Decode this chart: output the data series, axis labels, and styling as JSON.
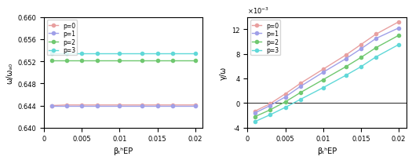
{
  "x": [
    0.001,
    0.003,
    0.005,
    0.007,
    0.01,
    0.013,
    0.015,
    0.017,
    0.02
  ],
  "left_ylim": [
    0.64,
    0.66
  ],
  "left_yticks": [
    0.64,
    0.644,
    0.648,
    0.652,
    0.656,
    0.66
  ],
  "left_ylabel": "ω/ωₐ₀",
  "left_xlabel": "βₜʰEP",
  "left_title": "",
  "left_lines": {
    "p=0": {
      "y": [
        0.644,
        0.6441,
        0.6441,
        0.6441,
        0.6441,
        0.6441,
        0.6441,
        0.6441,
        0.6441
      ],
      "color": "#e8a0a0",
      "marker": "o"
    },
    "p=1": {
      "y": [
        0.644,
        0.644,
        0.644,
        0.644,
        0.644,
        0.644,
        0.644,
        0.644,
        0.644
      ],
      "color": "#a0a0e8",
      "marker": "o"
    },
    "p=2": {
      "y": [
        0.6521,
        0.6521,
        0.6521,
        0.6521,
        0.6521,
        0.6521,
        0.6521,
        0.6521,
        0.6521
      ],
      "color": "#70c870",
      "marker": "o"
    },
    "p=3": {
      "y": [
        0.6534,
        0.6534,
        0.6534,
        0.6534,
        0.6534,
        0.6534,
        0.6534,
        0.6534,
        0.6534
      ],
      "color": "#60d8d8",
      "marker": "o"
    }
  },
  "right_ylim": [
    -0.004,
    0.014
  ],
  "right_yticks": [
    -0.004,
    0,
    0.004,
    0.008,
    0.012
  ],
  "right_ylabel": "γ/ω",
  "right_xlabel": "βₜʰEP",
  "right_title": "",
  "right_lines": {
    "p=0": {
      "y": [
        -0.0013,
        -0.0001,
        0.0015,
        0.0032,
        0.0055,
        0.0078,
        0.0095,
        0.0112,
        0.0132
      ],
      "color": "#e8a0a0",
      "marker": "o"
    },
    "p=1": {
      "y": [
        -0.0016,
        -0.0004,
        0.001,
        0.0027,
        0.005,
        0.0072,
        0.0088,
        0.0105,
        0.0122
      ],
      "color": "#a0a0e8",
      "marker": "o"
    },
    "p=2": {
      "y": [
        -0.0022,
        -0.0011,
        0.0002,
        0.0017,
        0.0038,
        0.0059,
        0.0074,
        0.009,
        0.011
      ],
      "color": "#70c870",
      "marker": "o"
    },
    "p=3": {
      "y": [
        -0.003,
        -0.0019,
        -0.0007,
        0.0006,
        0.0025,
        0.0045,
        0.0059,
        0.0075,
        0.0095
      ],
      "color": "#60d8d8",
      "marker": "o"
    }
  },
  "legend_labels": [
    "p=0",
    "p=1",
    "p=2",
    "p=3"
  ],
  "legend_colors": [
    "#e8a0a0",
    "#a0a0e8",
    "#70c870",
    "#60d8d8"
  ],
  "xlim": [
    0,
    0.021
  ],
  "xticks": [
    0,
    0.005,
    0.01,
    0.015,
    0.02
  ]
}
